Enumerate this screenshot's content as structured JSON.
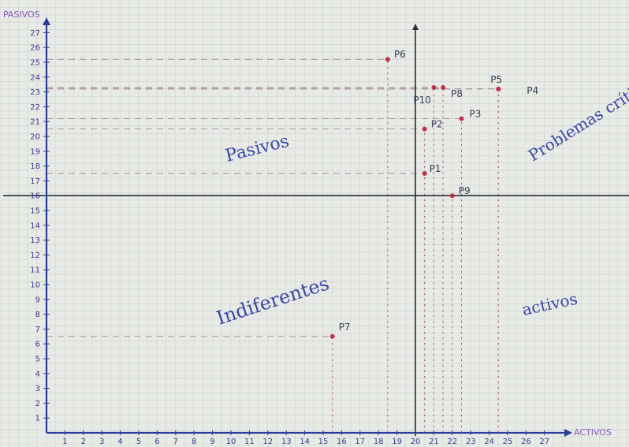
{
  "chart_data": {
    "type": "scatter",
    "title": "",
    "xlabel": "ACTIVOS",
    "ylabel": "PASIVOS",
    "xlim": [
      0,
      29
    ],
    "ylim": [
      0,
      28
    ],
    "x_ticks": [
      "1",
      "2",
      "3",
      "4",
      "5",
      "6",
      "7",
      "8",
      "9",
      "10",
      "11",
      "12",
      "13",
      "14",
      "15",
      "16",
      "17",
      "18",
      "19",
      "20",
      "21",
      "22",
      "23",
      "24",
      "25",
      "26",
      "27"
    ],
    "y_ticks": [
      "1",
      "2",
      "3",
      "4",
      "5",
      "6",
      "7",
      "8",
      "9",
      "10",
      "11",
      "12",
      "13",
      "14",
      "15",
      "16",
      "17",
      "18",
      "19",
      "20",
      "21",
      "22",
      "23",
      "24",
      "25",
      "26",
      "27"
    ],
    "grid": true,
    "crosshair": {
      "x": 20,
      "y": 16
    },
    "quadrants": [
      {
        "label": "Pasivos",
        "position": "top-left"
      },
      {
        "label": "Problemas críticos",
        "position": "top-right"
      },
      {
        "label": "Indiferentes",
        "position": "bottom-left"
      },
      {
        "label": "activos",
        "position": "bottom-right"
      }
    ],
    "points": [
      {
        "label": "P1",
        "x": 20.5,
        "y": 17.5
      },
      {
        "label": "P2",
        "x": 20.5,
        "y": 20.5
      },
      {
        "label": "P3",
        "x": 22.5,
        "y": 21.2
      },
      {
        "label": "P4",
        "x": 24.5,
        "y": 23.2
      },
      {
        "label": "P5",
        "x": 24.5,
        "y": 23.2
      },
      {
        "label": "P6",
        "x": 18.5,
        "y": 25.2
      },
      {
        "label": "P7",
        "x": 15.5,
        "y": 6.5
      },
      {
        "label": "P8",
        "x": 21.5,
        "y": 23.3
      },
      {
        "label": "P9",
        "x": 22.0,
        "y": 16.0
      },
      {
        "label": "P10",
        "x": 21.0,
        "y": 23.3
      }
    ],
    "point_color": "#c0334d",
    "axis_color": "#2d3c9a",
    "grid_color": "#b9c0c6",
    "guide_color": "#b05a78"
  }
}
